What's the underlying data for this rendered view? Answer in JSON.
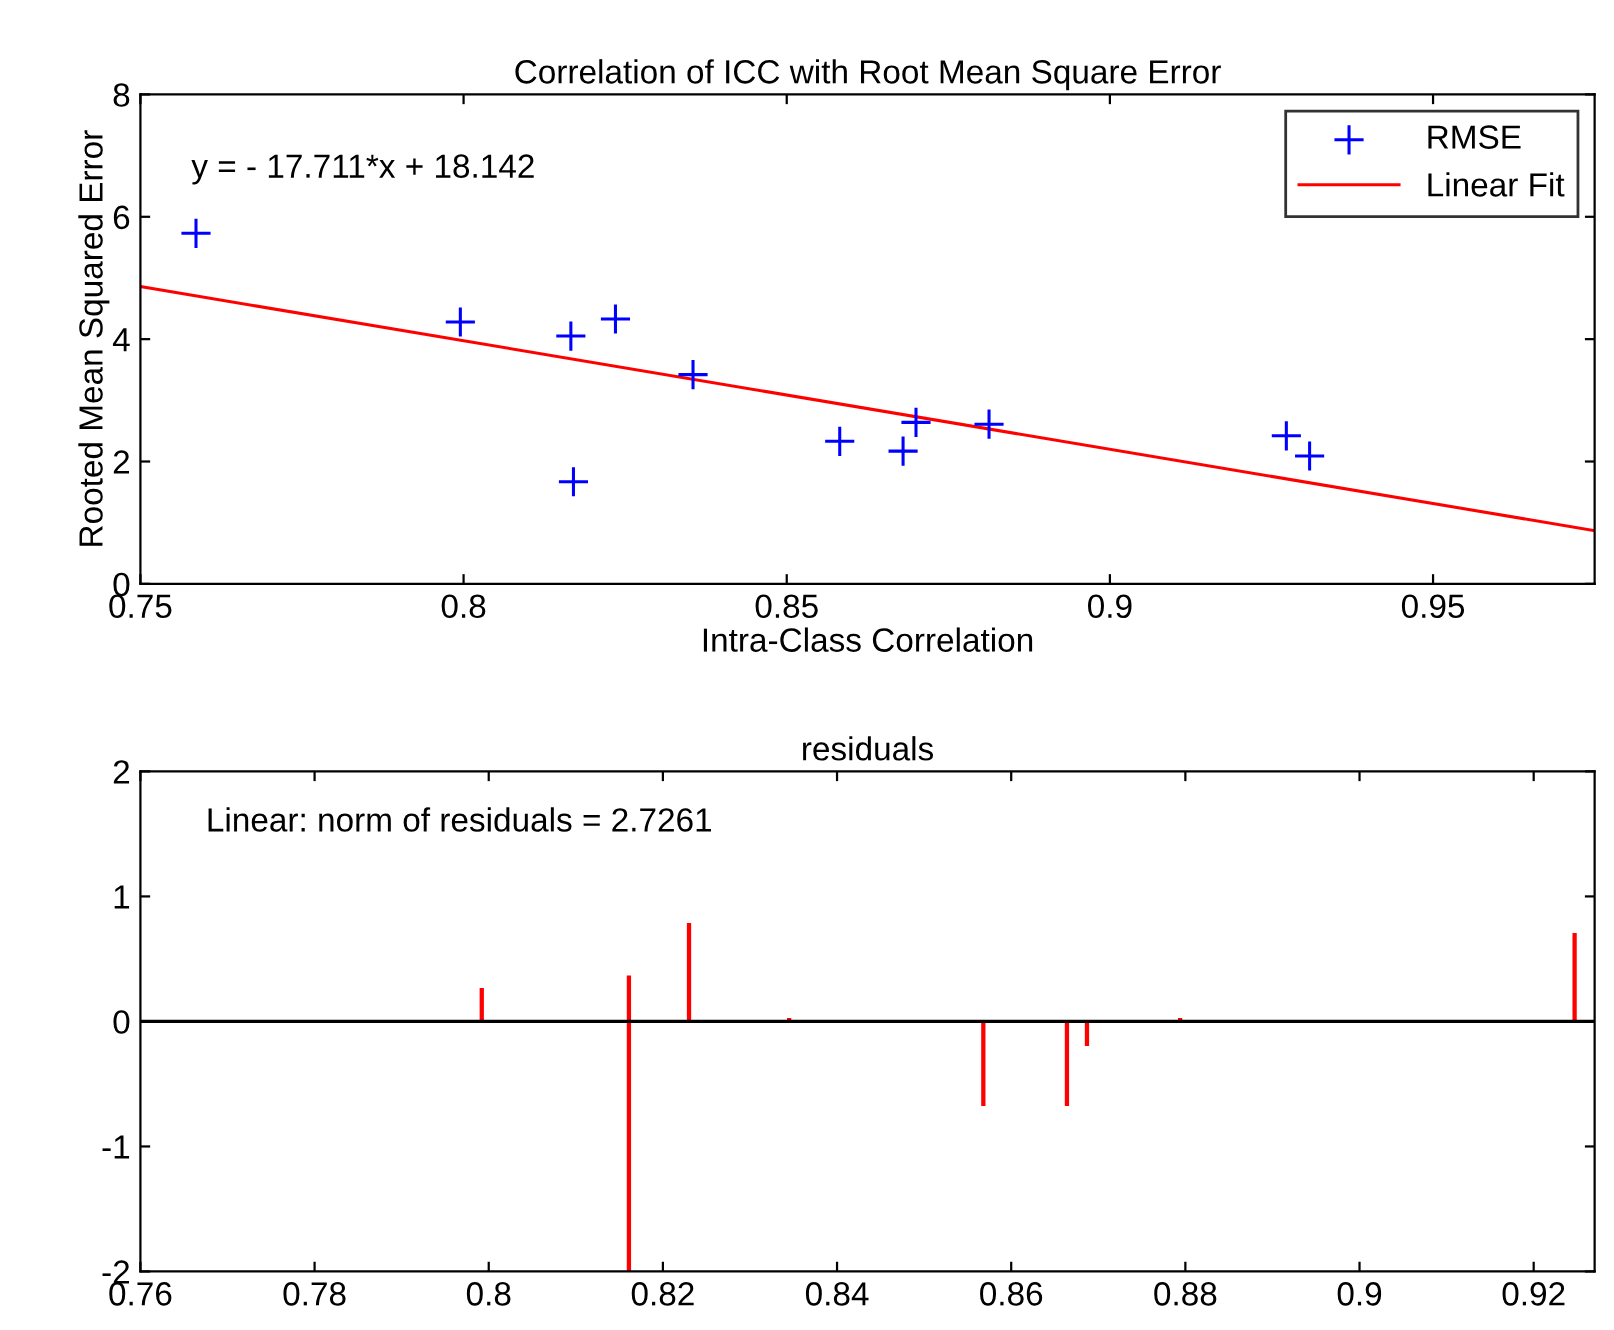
{
  "chart_data": [
    {
      "type": "scatter",
      "title": "Correlation of ICC with Root Mean Square Error",
      "xlabel": "Intra-Class Correlation",
      "ylabel": "Rooted Mean Squared Error",
      "series": [
        {
          "name": "RMSE",
          "type": "scatter",
          "color": "#0000ff",
          "marker": "cross",
          "x": [
            0.7586,
            0.7995,
            0.8166,
            0.817,
            0.8235,
            0.8355,
            0.8582,
            0.868,
            0.87,
            0.8813,
            0.9273,
            0.9309
          ],
          "values": [
            5.73,
            4.28,
            4.05,
            1.67,
            4.33,
            3.42,
            2.33,
            2.17,
            2.64,
            2.61,
            2.42,
            2.09
          ]
        },
        {
          "name": "Linear Fit",
          "type": "line",
          "color": "#ff0000",
          "line_style": "solid",
          "x": [
            0.75,
            0.975
          ],
          "values": [
            4.86,
            0.87
          ]
        }
      ],
      "annotations": [
        "y = - 17.711*x + 18.142"
      ],
      "xlim": [
        0.75,
        0.975
      ],
      "xticks": [
        0.75,
        0.8,
        0.85,
        0.9,
        0.95
      ],
      "ylim": [
        0,
        8
      ],
      "yticks": [
        0,
        2,
        4,
        6,
        8
      ],
      "legend": "top right",
      "grid": false
    },
    {
      "type": "bar",
      "title": "residuals",
      "series": [
        {
          "color": "#ff0000",
          "x": [
            0.7992,
            0.8161,
            0.823,
            0.8345,
            0.8568,
            0.8664,
            0.8687,
            0.8794,
            0.9247
          ],
          "values": [
            0.26,
            0.36,
            0.78,
            0.02,
            -0.67,
            -0.67,
            -0.19,
            0.02,
            0.7
          ]
        },
        {
          "color": "#ff0000",
          "x": [
            0.8161
          ],
          "values": [
            -2.0
          ]
        }
      ],
      "annotations": [
        "Linear: norm of residuals = 2.7261"
      ],
      "ref_lines": [
        {
          "axis": "y",
          "value": 0,
          "color": "#000000",
          "line_style": "solid"
        }
      ],
      "xlim": [
        0.76,
        0.927
      ],
      "xticks": [
        0.76,
        0.78,
        0.8,
        0.82,
        0.84,
        0.86,
        0.88,
        0.9,
        0.92
      ],
      "ylim": [
        -2,
        2
      ],
      "yticks": [
        -2,
        -1,
        0,
        1,
        2
      ],
      "legend": false,
      "grid": false
    }
  ]
}
